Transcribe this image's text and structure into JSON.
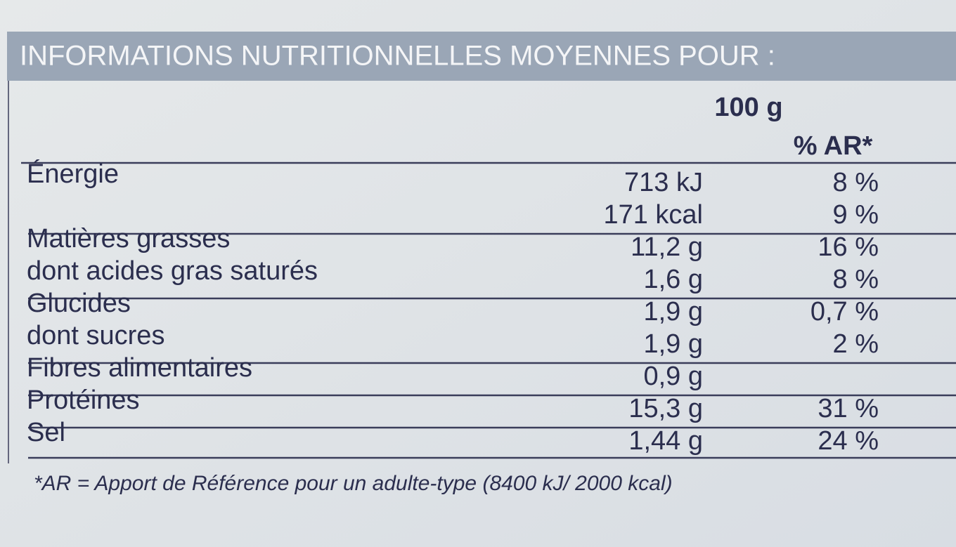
{
  "header": {
    "title": "INFORMATIONS NUTRITIONNELLES MOYENNES POUR :"
  },
  "table": {
    "columns": [
      "100 g",
      "% AR*"
    ],
    "rows": [
      {
        "label": "Énergie",
        "lines": [
          [
            "713 kJ",
            "8 %"
          ],
          [
            "171 kcal",
            "9 %"
          ]
        ]
      },
      {
        "label": "Matières grasses",
        "lines": [
          [
            "11,2 g",
            "16 %"
          ]
        ]
      },
      {
        "label": "dont acides gras saturés",
        "lines": [
          [
            "1,6 g",
            "8 %"
          ]
        ]
      },
      {
        "label": "Glucides",
        "lines": [
          [
            "1,9 g",
            "0,7 %"
          ]
        ]
      },
      {
        "label": "dont sucres",
        "lines": [
          [
            "1,9 g",
            "2 %"
          ]
        ]
      },
      {
        "label": "Fibres alimentaires",
        "lines": [
          [
            "0,9 g"
          ]
        ]
      },
      {
        "label": "Protéines",
        "lines": [
          [
            "15,3 g",
            "31 %"
          ]
        ]
      },
      {
        "label": "Sel",
        "lines": [
          [
            "1,44 g",
            "24 %"
          ]
        ]
      }
    ]
  },
  "footnote": "*AR = Apport de Référence pour un adulte-type (8400 kJ/ 2000 kcal)"
}
